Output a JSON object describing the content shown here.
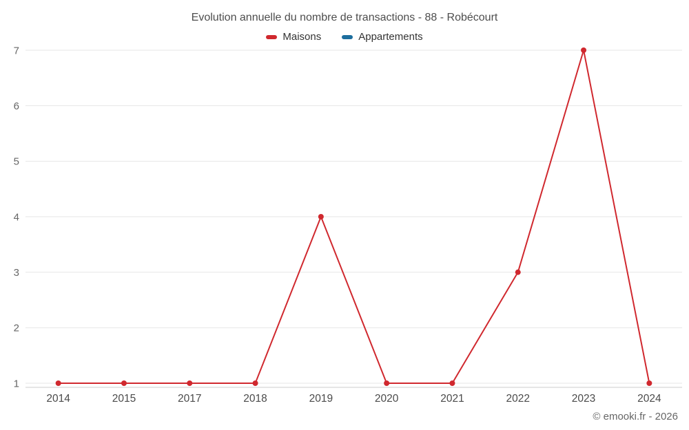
{
  "header": {
    "title": "Evolution annuelle du nombre de transactions - 88 - Robécourt"
  },
  "legend": {
    "items": [
      {
        "label": "Maisons",
        "color": "#d0282e"
      },
      {
        "label": "Appartements",
        "color": "#1d6e9e"
      }
    ]
  },
  "footer": {
    "credit": "© emooki.fr - 2026"
  },
  "chart_data": {
    "type": "line",
    "title": "Evolution annuelle du nombre de transactions - 88 - Robécourt",
    "categories": [
      "2014",
      "2015",
      "2017",
      "2018",
      "2019",
      "2020",
      "2021",
      "2022",
      "2023",
      "2024"
    ],
    "series": [
      {
        "name": "Maisons",
        "color": "#d0282e",
        "values": [
          1,
          1,
          1,
          1,
          4,
          1,
          1,
          3,
          7,
          1
        ]
      },
      {
        "name": "Appartements",
        "color": "#1d6e9e",
        "values": []
      }
    ],
    "xlabel": "",
    "ylabel": "",
    "ylim": [
      1,
      7
    ],
    "yticks": [
      1,
      2,
      3,
      4,
      5,
      6,
      7
    ],
    "grid": true,
    "legend_position": "top",
    "colors": {
      "gridline": "#e6e6e6",
      "axis_line": "#cccccc",
      "y_label": "#666666",
      "x_label": "#4a4a4a"
    }
  }
}
